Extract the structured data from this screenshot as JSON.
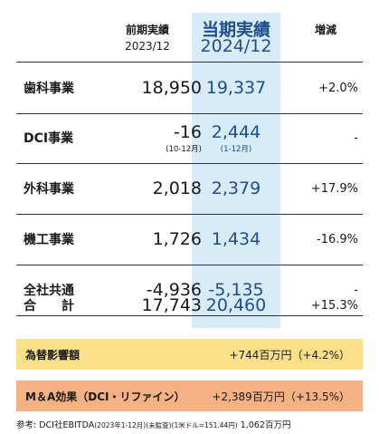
{
  "headers": {
    "prev": {
      "label": "前期実績",
      "period": "2023/12"
    },
    "cur": {
      "label": "当期実績",
      "period": "2024/12"
    },
    "chg": {
      "label": "増減"
    }
  },
  "rows": [
    {
      "segment": "歯科事業",
      "prev": "18,950",
      "cur": "19,337",
      "change": "+2.0%"
    },
    {
      "segment": "DCI事業",
      "prev": "-16",
      "prev_note": "(10-12月)",
      "cur": "2,444",
      "cur_note": "(1-12月)",
      "change": "-"
    },
    {
      "segment": "外科事業",
      "prev": "2,018",
      "cur": "2,379",
      "change": "+17.9%"
    },
    {
      "segment": "機工事業",
      "prev": "1,726",
      "cur": "1,434",
      "change": "-16.9%"
    },
    {
      "segment": "全社共通",
      "prev": "-4,936",
      "cur": "-5,135",
      "change": "-"
    },
    {
      "segment": "合　　計",
      "prev": "17,743",
      "cur": "20,460",
      "change": "+15.3%"
    }
  ],
  "summary": [
    {
      "label": "為替影響額",
      "value": "+744百万円（+4.2%）",
      "color": "#fbe08a"
    },
    {
      "label": "M＆A効果（DCI・リファイン）",
      "value": "+2,389百万円（+13.5%）",
      "color": "#f4b183"
    }
  ],
  "footnote": {
    "prefix": "参考: DCI社EBITDA",
    "detail": "(2023年1-12月)(未監査)(1米ドル=151.44円)",
    "value": "1,062百万円"
  }
}
